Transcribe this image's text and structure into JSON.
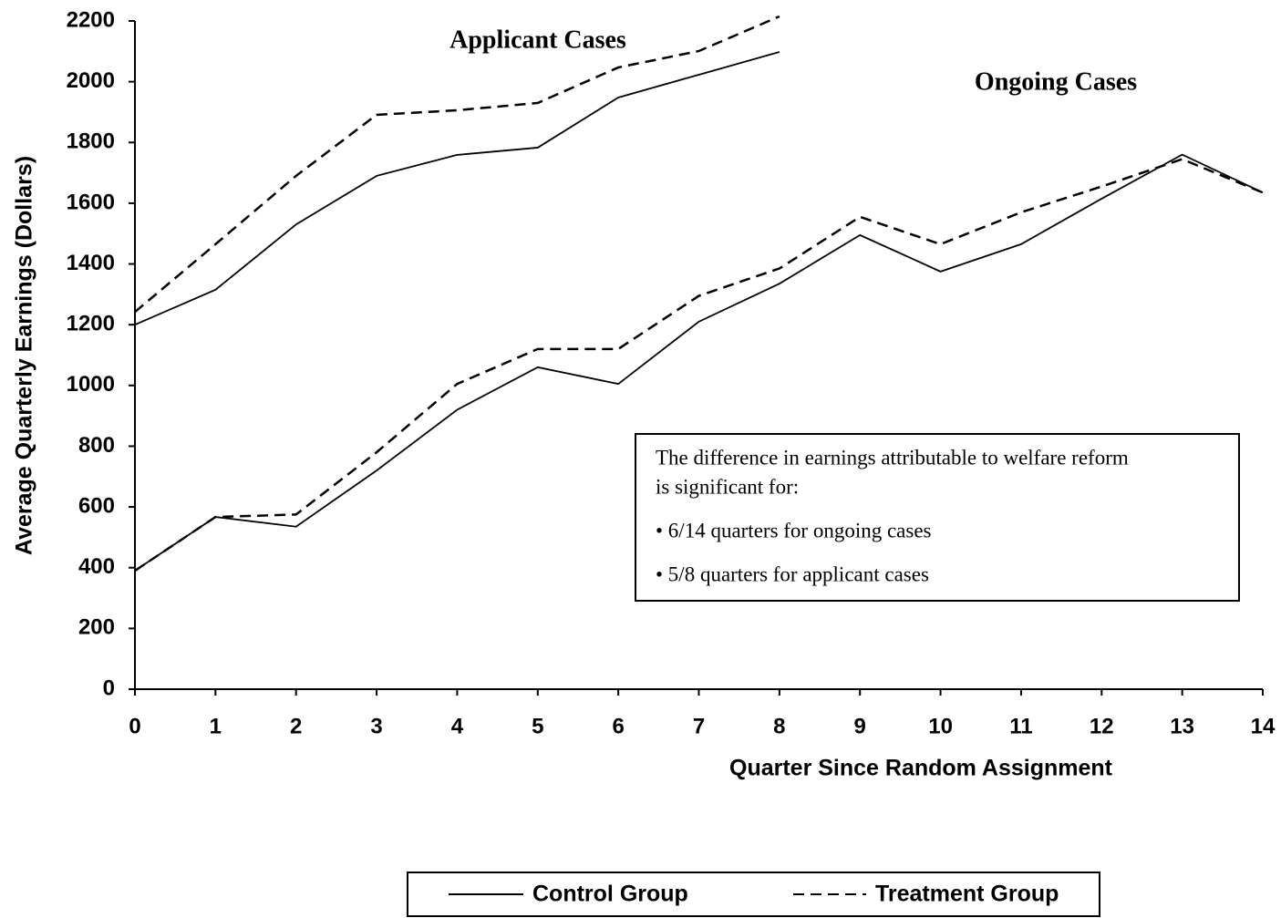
{
  "chart_data": {
    "type": "line",
    "x_label": "Quarter Since Random Assignment",
    "y_label": "Average Quarterly Earnings (Dollars)",
    "x": [
      0,
      1,
      2,
      3,
      4,
      5,
      6,
      7,
      8,
      9,
      10,
      11,
      12,
      13,
      14
    ],
    "xlim": [
      0,
      14
    ],
    "xticks": [
      0,
      1,
      2,
      3,
      4,
      5,
      6,
      7,
      8,
      9,
      10,
      11,
      12,
      13,
      14
    ],
    "ylim": [
      0,
      2200
    ],
    "yticks": [
      0,
      200,
      400,
      600,
      800,
      1000,
      1200,
      1400,
      1600,
      1800,
      2000,
      2200
    ],
    "series": [
      {
        "name": "Control Group",
        "color": "#000000",
        "dash": "solid"
      },
      {
        "name": "Treatment Group",
        "color": "#000000",
        "dash": "dashed"
      }
    ],
    "groups": [
      {
        "label": "Applicant Cases",
        "values": [
          [
            1200,
            1315,
            1530,
            1690,
            1759,
            1783,
            1948,
            2023,
            2098
          ],
          [
            1242,
            1465,
            1690,
            1891,
            1906,
            1930,
            2047,
            2101,
            2215
          ]
        ]
      },
      {
        "label": "Ongoing Cases",
        "values": [
          [
            390,
            567,
            535,
            720,
            920,
            1060,
            1005,
            1210,
            1335,
            1495,
            1375,
            1465,
            1615,
            1760,
            1635
          ],
          [
            390,
            567,
            575,
            780,
            1005,
            1120,
            1120,
            1295,
            1385,
            1555,
            1465,
            1570,
            1655,
            1745,
            1635
          ]
        ]
      }
    ],
    "note": [
      "The difference in earnings attributable to welfare reform",
      "is significant for:",
      "• 6/14 quarters for ongoing cases",
      "• 5/8 quarters for applicant cases"
    ],
    "legend": "bottom"
  }
}
